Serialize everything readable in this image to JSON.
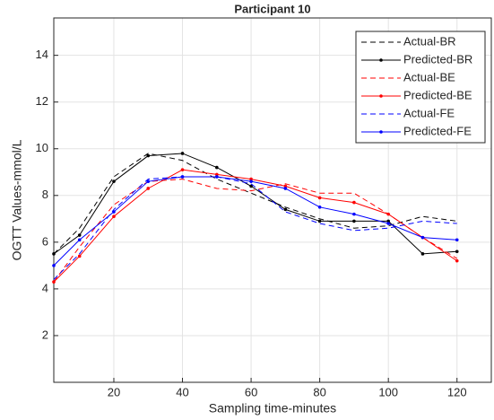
{
  "chart_data": {
    "type": "line",
    "title": "Participant 10",
    "x_label": "Sampling time-minutes",
    "y_label": "OGTT Values-mmol/L",
    "x": [
      2.5,
      10,
      20,
      30,
      40,
      50,
      60,
      70,
      80,
      90,
      100,
      110,
      120
    ],
    "xlim": [
      2.5,
      130
    ],
    "ylim": [
      0,
      15.6
    ],
    "xticks": [
      20,
      40,
      60,
      80,
      100,
      120
    ],
    "yticks": [
      2,
      4,
      6,
      8,
      10,
      12,
      14
    ],
    "grid": true,
    "legend": "top-right",
    "series": [
      {
        "name": "Actual-BR",
        "color": "#000000",
        "style": "dashed",
        "marker": false,
        "values": [
          5.5,
          6.6,
          8.8,
          9.8,
          9.5,
          8.7,
          8.1,
          7.5,
          7.0,
          6.6,
          6.7,
          7.1,
          6.9
        ]
      },
      {
        "name": "Predicted-BR",
        "color": "#000000",
        "style": "solid",
        "marker": true,
        "values": [
          5.5,
          6.3,
          8.6,
          9.7,
          9.8,
          9.2,
          8.4,
          7.4,
          6.9,
          6.9,
          6.9,
          5.5,
          5.6
        ]
      },
      {
        "name": "Actual-BE",
        "color": "#ff0000",
        "style": "dashed",
        "marker": false,
        "values": [
          4.3,
          5.8,
          7.6,
          8.6,
          8.7,
          8.3,
          8.2,
          8.5,
          8.1,
          8.1,
          7.2,
          6.2,
          5.3
        ]
      },
      {
        "name": "Predicted-BE",
        "color": "#ff0000",
        "style": "solid",
        "marker": true,
        "values": [
          4.3,
          5.4,
          7.1,
          8.3,
          9.1,
          8.9,
          8.7,
          8.4,
          7.9,
          7.7,
          7.2,
          6.2,
          5.2
        ]
      },
      {
        "name": "Actual-FE",
        "color": "#0000ff",
        "style": "dashed",
        "marker": false,
        "values": [
          4.4,
          5.5,
          7.4,
          8.7,
          8.8,
          8.8,
          8.5,
          7.3,
          6.8,
          6.5,
          6.6,
          6.9,
          6.8
        ]
      },
      {
        "name": "Predicted-FE",
        "color": "#0000ff",
        "style": "solid",
        "marker": true,
        "values": [
          5.0,
          6.1,
          7.3,
          8.6,
          8.8,
          8.8,
          8.6,
          8.3,
          7.5,
          7.2,
          6.8,
          6.2,
          6.1
        ]
      }
    ]
  }
}
